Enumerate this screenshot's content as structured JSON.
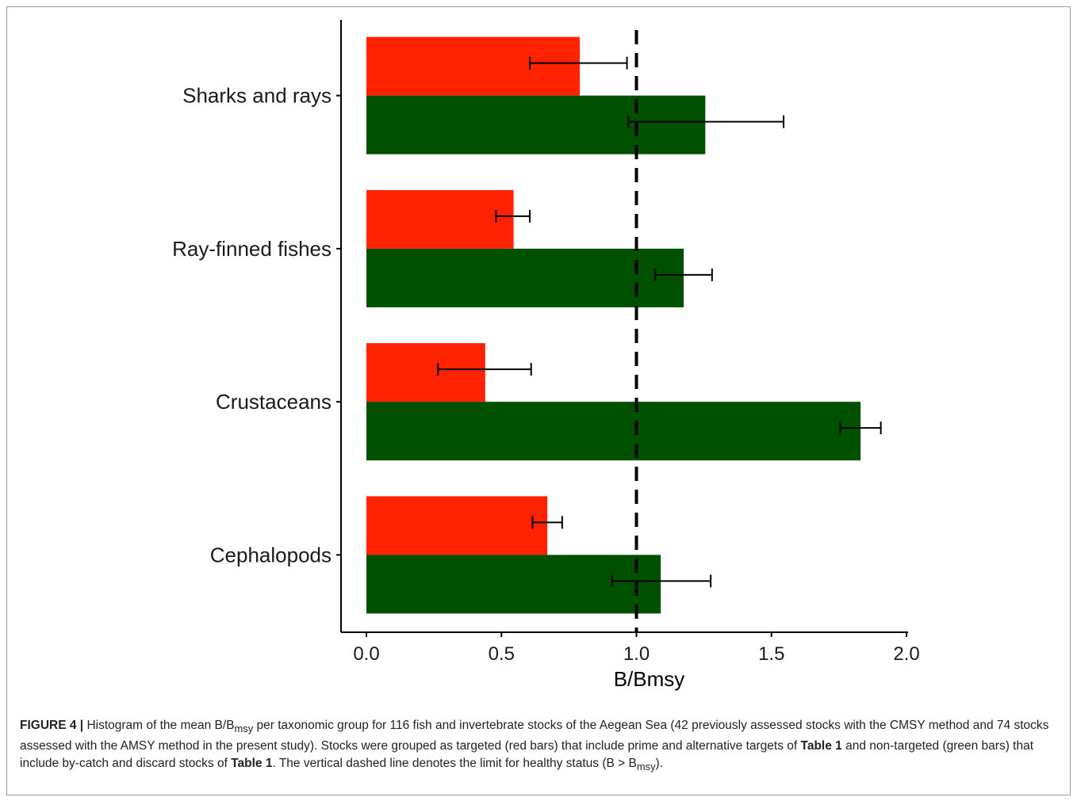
{
  "chart_data": {
    "type": "bar",
    "orientation": "horizontal",
    "categories": [
      "Sharks and rays",
      "Ray-finned fishes",
      "Crustaceans",
      "Cephalopods"
    ],
    "series": [
      {
        "color": "#ff2200",
        "values": [
          0.79,
          0.545,
          0.44,
          0.67
        ],
        "err_low": [
          0.605,
          0.48,
          0.265,
          0.615
        ],
        "err_high": [
          0.965,
          0.605,
          0.61,
          0.725
        ]
      },
      {
        "color": "#005000",
        "values": [
          1.255,
          1.175,
          1.83,
          1.09
        ],
        "err_low": [
          0.97,
          1.07,
          1.755,
          0.91
        ],
        "err_high": [
          1.545,
          1.28,
          1.905,
          1.275
        ]
      }
    ],
    "xlabel": "B/Bmsy",
    "xticks": [
      "0.0",
      "0.5",
      "1.0",
      "1.5",
      "2.0"
    ],
    "xlim": [
      0,
      2
    ],
    "reference_line": {
      "x": 1.0,
      "style": "dashed"
    },
    "grid": false
  },
  "caption": {
    "label": "FIGURE 4 |",
    "text_1": " Histogram of the mean B/B",
    "sub_1": "msy",
    "text_2": " per taxonomic group for 116 fish and invertebrate stocks of the Aegean Sea (42 previously assessed stocks with the CMSY method and 74 stocks assessed with the AMSY method in the present study). Stocks were grouped as targeted (red bars) that include prime and alternative targets of ",
    "bold_1": "Table 1",
    "text_3": " and non-targeted (green bars) that include by-catch and discard stocks of ",
    "bold_2": "Table 1",
    "text_4": ". The vertical dashed line denotes the limit for healthy status (B > B",
    "sub_2": "msy",
    "text_5": ")."
  }
}
